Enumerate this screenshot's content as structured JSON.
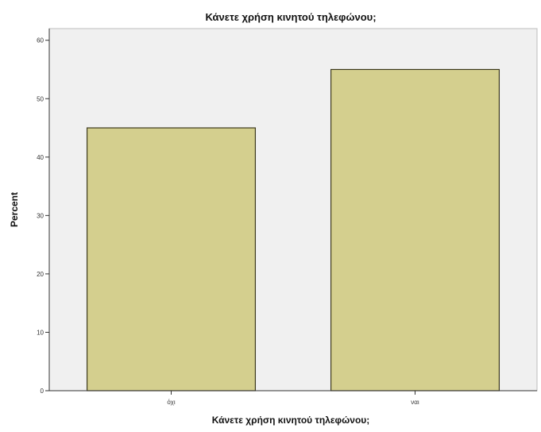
{
  "chart_data": {
    "type": "bar",
    "title": "Κάνετε χρήση κινητού τηλεφώνου;",
    "xlabel": "Κάνετε χρήση κινητού τηλεφώνου;",
    "ylabel": "Percent",
    "categories": [
      "όχι",
      "ναι"
    ],
    "values": [
      45,
      55
    ],
    "ylim": [
      0,
      62
    ],
    "yticks": [
      0,
      10,
      20,
      30,
      40,
      50,
      60
    ],
    "grid": false,
    "colors": {
      "plot_background": "#f0f0f0",
      "bar_fill": "#d4cf8e",
      "bar_stroke": "#3d3a1e",
      "axis": "#333333"
    }
  }
}
